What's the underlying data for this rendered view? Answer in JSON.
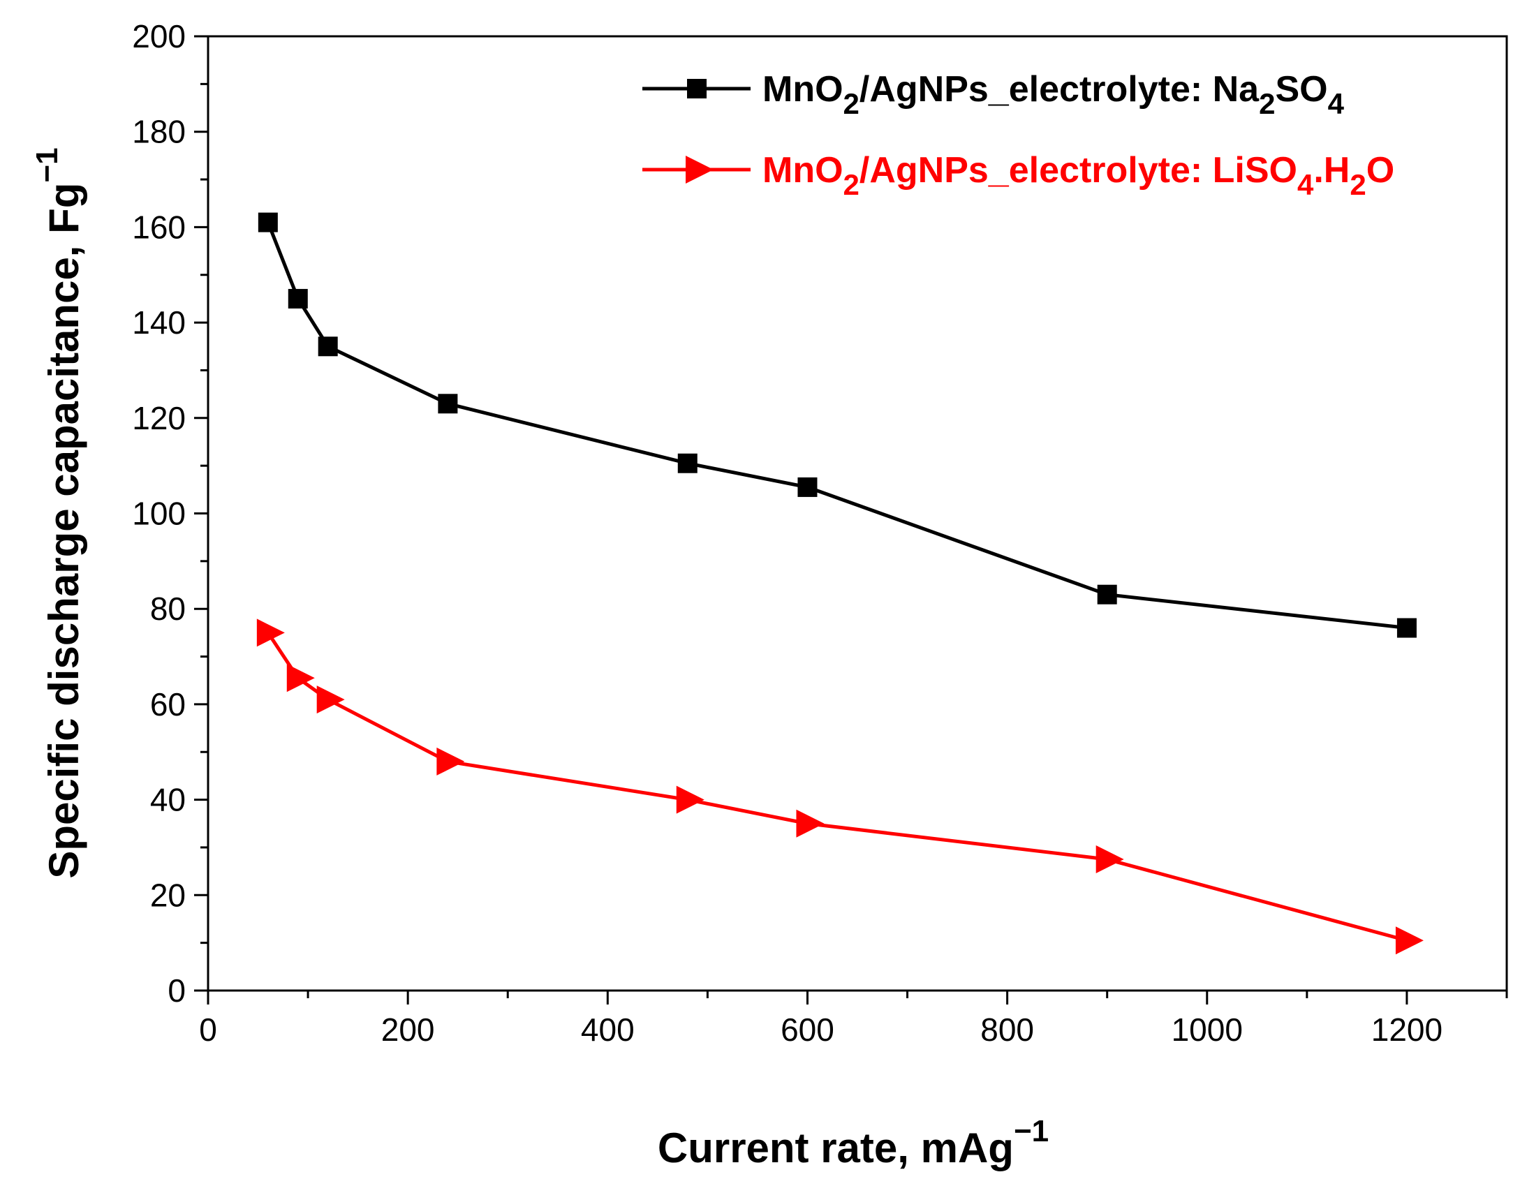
{
  "chart_data": {
    "type": "line",
    "xlabel": {
      "main": "Current rate, mAg",
      "sup": "−1"
    },
    "ylabel": {
      "main": "Specific discharge capacitance, Fg",
      "sup": "−1"
    },
    "xlim": [
      0,
      1300
    ],
    "ylim": [
      0,
      200
    ],
    "xticks": [
      0,
      200,
      400,
      600,
      800,
      1000,
      1200
    ],
    "xticks_minor": [
      100,
      300,
      500,
      700,
      900,
      1100,
      1300
    ],
    "yticks": [
      0,
      20,
      40,
      60,
      80,
      100,
      120,
      140,
      160,
      180,
      200
    ],
    "yticks_minor": [
      10,
      30,
      50,
      70,
      90,
      110,
      130,
      150,
      170,
      190
    ],
    "legend_position": "top-right",
    "series": [
      {
        "name": "MnO2/AgNPs_electrolyte: Na2SO4",
        "legend_parts": [
          {
            "t": "MnO"
          },
          {
            "t": "2",
            "sub": true
          },
          {
            "t": "/AgNPs_electrolyte: Na"
          },
          {
            "t": "2",
            "sub": true
          },
          {
            "t": "SO"
          },
          {
            "t": "4",
            "sub": true
          }
        ],
        "color": "#000000",
        "marker": "square",
        "x": [
          60,
          90,
          120,
          240,
          480,
          600,
          900,
          1200
        ],
        "y": [
          161,
          145,
          135,
          123,
          110.5,
          105.5,
          83,
          76
        ]
      },
      {
        "name": "MnO2/AgNPs_electrolyte: LiSO4.H2O",
        "legend_parts": [
          {
            "t": "MnO"
          },
          {
            "t": "2",
            "sub": true
          },
          {
            "t": "/AgNPs_electrolyte: LiSO"
          },
          {
            "t": "4",
            "sub": true
          },
          {
            "t": ".H"
          },
          {
            "t": "2",
            "sub": true
          },
          {
            "t": "O"
          }
        ],
        "color": "#ff0000",
        "marker": "triangle-right",
        "x": [
          60,
          90,
          120,
          240,
          480,
          600,
          900,
          1200
        ],
        "y": [
          75,
          65.5,
          61,
          48,
          40,
          35,
          27.5,
          10.5
        ]
      }
    ]
  }
}
